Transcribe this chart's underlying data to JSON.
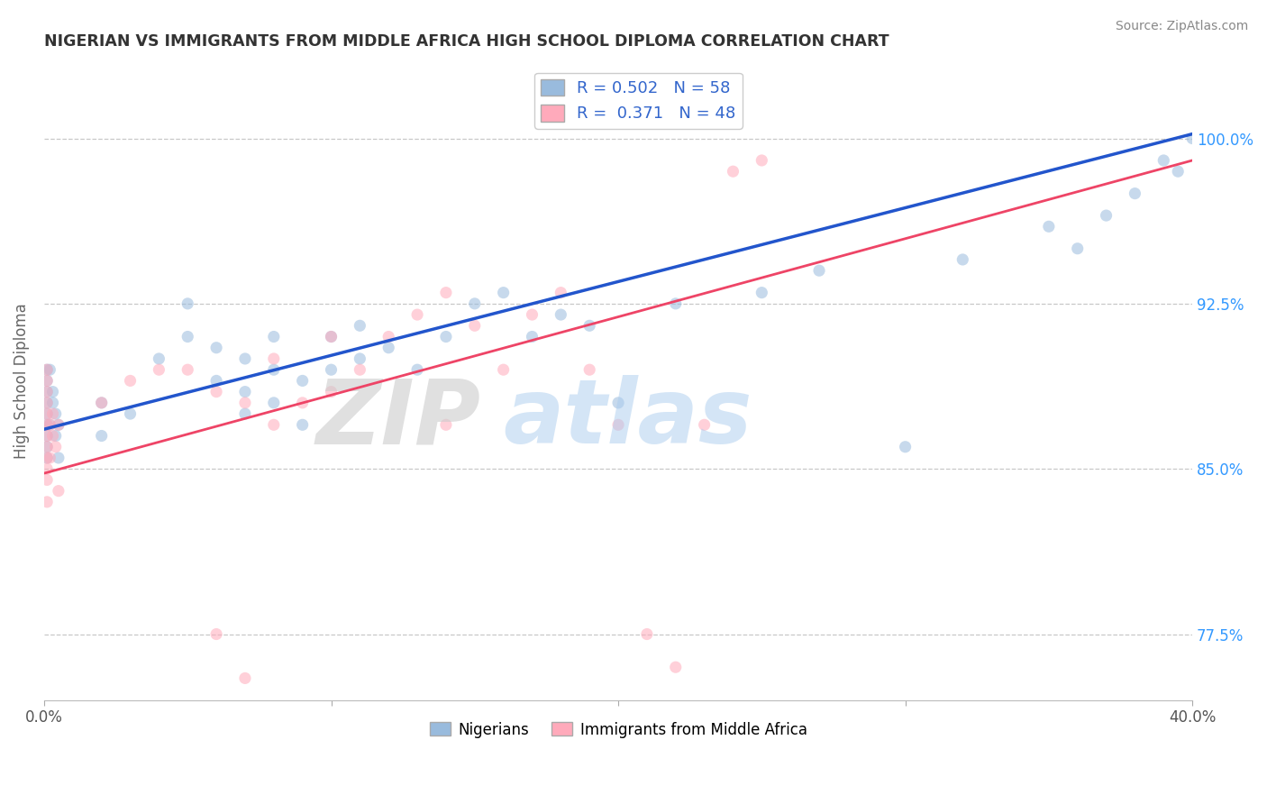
{
  "title": "NIGERIAN VS IMMIGRANTS FROM MIDDLE AFRICA HIGH SCHOOL DIPLOMA CORRELATION CHART",
  "source": "Source: ZipAtlas.com",
  "ylabel": "High School Diploma",
  "yticks": [
    "77.5%",
    "85.0%",
    "92.5%",
    "100.0%"
  ],
  "ytick_vals": [
    0.775,
    0.85,
    0.925,
    1.0
  ],
  "xmin": 0.0,
  "xmax": 0.4,
  "ymin": 0.745,
  "ymax": 1.035,
  "color_blue": "#99BBDD",
  "color_pink": "#FFAABB",
  "color_blue_line": "#2255CC",
  "color_pink_line": "#EE4466",
  "nigerians_x": [
    0.001,
    0.001,
    0.001,
    0.001,
    0.001,
    0.001,
    0.001,
    0.001,
    0.001,
    0.002,
    0.002,
    0.003,
    0.003,
    0.004,
    0.004,
    0.005,
    0.005,
    0.02,
    0.02,
    0.03,
    0.04,
    0.05,
    0.05,
    0.06,
    0.06,
    0.07,
    0.07,
    0.08,
    0.08,
    0.09,
    0.1,
    0.1,
    0.11,
    0.11,
    0.12,
    0.13,
    0.14,
    0.15,
    0.16,
    0.17,
    0.18,
    0.19,
    0.2,
    0.22,
    0.25,
    0.27,
    0.3,
    0.32,
    0.35,
    0.36,
    0.37,
    0.38,
    0.39,
    0.395,
    0.4,
    0.07,
    0.08,
    0.09
  ],
  "nigerians_y": [
    0.88,
    0.89,
    0.895,
    0.87,
    0.86,
    0.875,
    0.885,
    0.865,
    0.855,
    0.895,
    0.87,
    0.88,
    0.885,
    0.875,
    0.865,
    0.87,
    0.855,
    0.88,
    0.865,
    0.875,
    0.9,
    0.925,
    0.91,
    0.905,
    0.89,
    0.885,
    0.9,
    0.895,
    0.91,
    0.89,
    0.91,
    0.895,
    0.9,
    0.915,
    0.905,
    0.895,
    0.91,
    0.925,
    0.93,
    0.91,
    0.92,
    0.915,
    0.88,
    0.925,
    0.93,
    0.94,
    0.86,
    0.945,
    0.96,
    0.95,
    0.965,
    0.975,
    0.99,
    0.985,
    1.0,
    0.875,
    0.88,
    0.87
  ],
  "immigrants_x": [
    0.001,
    0.001,
    0.001,
    0.001,
    0.001,
    0.001,
    0.001,
    0.001,
    0.001,
    0.001,
    0.001,
    0.001,
    0.002,
    0.002,
    0.003,
    0.003,
    0.004,
    0.005,
    0.005,
    0.02,
    0.03,
    0.04,
    0.05,
    0.06,
    0.07,
    0.08,
    0.08,
    0.09,
    0.1,
    0.1,
    0.11,
    0.12,
    0.13,
    0.14,
    0.15,
    0.16,
    0.17,
    0.18,
    0.19,
    0.2,
    0.21,
    0.22,
    0.23,
    0.24,
    0.25,
    0.14,
    0.06,
    0.07
  ],
  "immigrants_y": [
    0.87,
    0.875,
    0.88,
    0.885,
    0.855,
    0.86,
    0.865,
    0.89,
    0.895,
    0.835,
    0.845,
    0.85,
    0.87,
    0.855,
    0.865,
    0.875,
    0.86,
    0.87,
    0.84,
    0.88,
    0.89,
    0.895,
    0.895,
    0.885,
    0.88,
    0.9,
    0.87,
    0.88,
    0.885,
    0.91,
    0.895,
    0.91,
    0.92,
    0.93,
    0.915,
    0.895,
    0.92,
    0.93,
    0.895,
    0.87,
    0.775,
    0.76,
    0.87,
    0.985,
    0.99,
    0.87,
    0.775,
    0.755
  ],
  "line_blue_x0": 0.0,
  "line_blue_x1": 0.4,
  "line_blue_y0": 0.868,
  "line_blue_y1": 1.002,
  "line_pink_x0": 0.0,
  "line_pink_x1": 0.4,
  "line_pink_y0": 0.848,
  "line_pink_y1": 0.99
}
